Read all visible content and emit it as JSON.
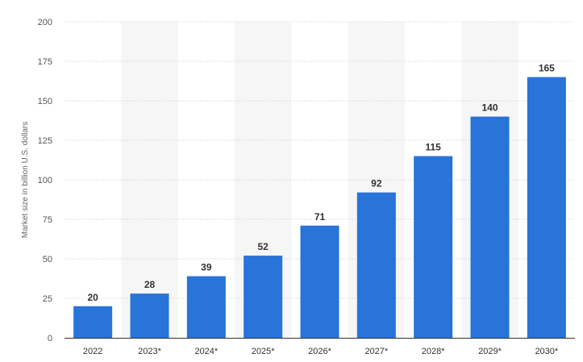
{
  "chart_data": {
    "type": "bar",
    "categories": [
      "2022",
      "2023*",
      "2024*",
      "2025*",
      "2026*",
      "2027*",
      "2028*",
      "2029*",
      "2030*"
    ],
    "values": [
      20,
      28,
      39,
      52,
      71,
      92,
      115,
      140,
      165
    ],
    "ylabel": "Market size in billion U.S. dollars",
    "xlabel": "",
    "ylim": [
      0,
      200
    ],
    "yticks": [
      0,
      25,
      50,
      75,
      100,
      125,
      150,
      175,
      200
    ],
    "grid": "horizontal-dotted",
    "alternating_column_shading": true,
    "data_labels": true,
    "colors": {
      "bar": "#2874d8",
      "shade": "#f6f6f6",
      "grid": "#cccccc",
      "axis": "#333333"
    }
  }
}
